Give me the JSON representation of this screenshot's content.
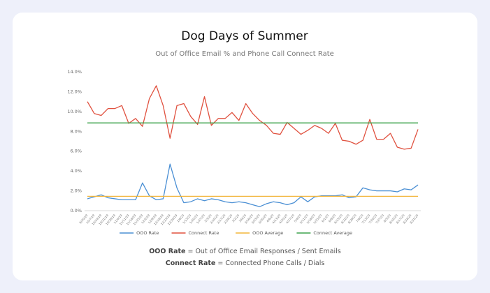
{
  "chart_data": {
    "type": "line",
    "title": "Dog Days of Summer",
    "subtitle": "Out of Office Email % and Phone Call Connect Rate",
    "categories": [
      "9/30/19",
      "10/7/19",
      "10/14/19",
      "10/21/19",
      "10/28/19",
      "11/4/19",
      "11/11/19",
      "11/18/19",
      "11/25/19",
      "12/2/19",
      "12/9/19",
      "12/16/19",
      "12/23/19",
      "12/30/19",
      "1/6/20",
      "1/13/20",
      "1/20/20",
      "1/27/20",
      "2/3/20",
      "2/10/20",
      "2/17/20",
      "2/24/20",
      "3/2/20",
      "3/9/20",
      "3/16/20",
      "3/23/20",
      "3/30/20",
      "4/6/20",
      "4/13/20",
      "4/20/20",
      "4/27/20",
      "5/4/20",
      "5/11/20",
      "5/18/20",
      "5/25/20",
      "6/1/20",
      "6/8/20",
      "6/15/20",
      "6/22/20",
      "6/29/20",
      "7/6/20",
      "7/13/20",
      "7/20/20",
      "7/27/20",
      "8/3/20",
      "8/10/20",
      "8/17/20",
      "8/24/20",
      "8/31/20"
    ],
    "series": [
      {
        "name": "OOO Rate",
        "color": "#4a8fd4",
        "values": [
          1.2,
          1.4,
          1.6,
          1.3,
          1.2,
          1.1,
          1.1,
          1.1,
          2.8,
          1.5,
          1.1,
          1.2,
          4.7,
          2.3,
          0.8,
          0.9,
          1.2,
          1.0,
          1.2,
          1.1,
          0.9,
          0.8,
          0.9,
          0.8,
          0.6,
          0.4,
          0.7,
          0.9,
          0.8,
          0.6,
          0.8,
          1.4,
          0.9,
          1.4,
          1.5,
          1.5,
          1.5,
          1.6,
          1.3,
          1.4,
          2.3,
          2.1,
          2.0,
          2.0,
          2.0,
          1.9,
          2.2,
          2.1,
          2.6
        ]
      },
      {
        "name": "Connect Rate",
        "color": "#e0513f",
        "values": [
          11.0,
          9.8,
          9.6,
          10.3,
          10.3,
          10.6,
          8.8,
          9.3,
          8.5,
          11.3,
          12.6,
          10.6,
          7.3,
          10.6,
          10.8,
          9.5,
          8.7,
          11.5,
          8.6,
          9.3,
          9.3,
          9.9,
          9.1,
          10.8,
          9.8,
          9.1,
          8.6,
          7.8,
          7.7,
          8.9,
          8.3,
          7.7,
          8.1,
          8.6,
          8.3,
          7.8,
          8.8,
          7.1,
          7.0,
          6.7,
          7.1,
          9.2,
          7.2,
          7.2,
          7.8,
          6.4,
          6.2,
          6.3,
          8.2
        ]
      },
      {
        "name": "OOO Average",
        "color": "#f2b53a",
        "values": [
          1.45,
          1.45,
          1.45,
          1.45,
          1.45,
          1.45,
          1.45,
          1.45,
          1.45,
          1.45,
          1.45,
          1.45,
          1.45,
          1.45,
          1.45,
          1.45,
          1.45,
          1.45,
          1.45,
          1.45,
          1.45,
          1.45,
          1.45,
          1.45,
          1.45,
          1.45,
          1.45,
          1.45,
          1.45,
          1.45,
          1.45,
          1.45,
          1.45,
          1.45,
          1.45,
          1.45,
          1.45,
          1.45,
          1.45,
          1.45,
          1.45,
          1.45,
          1.45,
          1.45,
          1.45,
          1.45,
          1.45,
          1.45,
          1.45
        ]
      },
      {
        "name": "Connect Average",
        "color": "#3fa34d",
        "values": [
          8.85,
          8.85,
          8.85,
          8.85,
          8.85,
          8.85,
          8.85,
          8.85,
          8.85,
          8.85,
          8.85,
          8.85,
          8.85,
          8.85,
          8.85,
          8.85,
          8.85,
          8.85,
          8.85,
          8.85,
          8.85,
          8.85,
          8.85,
          8.85,
          8.85,
          8.85,
          8.85,
          8.85,
          8.85,
          8.85,
          8.85,
          8.85,
          8.85,
          8.85,
          8.85,
          8.85,
          8.85,
          8.85,
          8.85,
          8.85,
          8.85,
          8.85,
          8.85,
          8.85,
          8.85,
          8.85,
          8.85,
          8.85,
          8.85
        ]
      }
    ],
    "ylim": [
      0,
      14
    ],
    "yticks": [
      {
        "value": 0,
        "label": "0.0%"
      },
      {
        "value": 2,
        "label": "2.0%"
      },
      {
        "value": 4,
        "label": "4.0%"
      },
      {
        "value": 6,
        "label": "6.0%"
      },
      {
        "value": 8,
        "label": "8.0%"
      },
      {
        "value": 10,
        "label": "10.0%"
      },
      {
        "value": 12,
        "label": "12.0%"
      },
      {
        "value": 14,
        "label": "14.0%"
      }
    ],
    "grid": false,
    "legend": "bottom",
    "footnotes": [
      {
        "term": "OOO Rate",
        "definition": "= Out of Office Email Responses / Sent Emails"
      },
      {
        "term": "Connect Rate",
        "definition": "= Connected Phone Calls / Dials"
      }
    ]
  }
}
